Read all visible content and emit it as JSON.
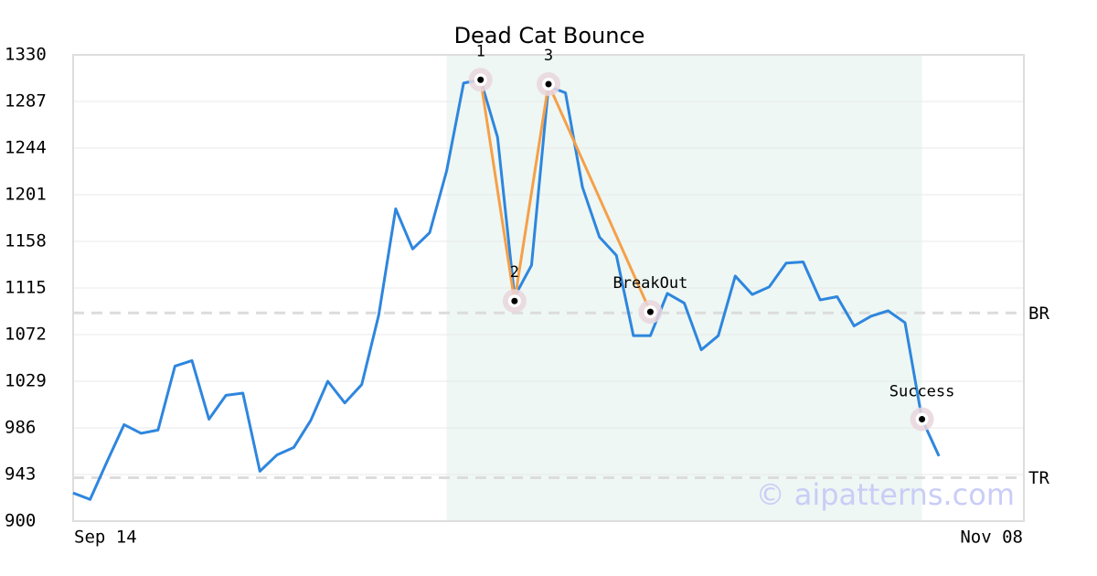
{
  "chart_data": {
    "type": "line",
    "title": "Dead Cat Bounce",
    "categories": [
      "Sep 14",
      null,
      null,
      null,
      null,
      null,
      null,
      null,
      null,
      null,
      null,
      null,
      null,
      null,
      null,
      null,
      null,
      null,
      null,
      null,
      null,
      null,
      null,
      null,
      null,
      null,
      null,
      null,
      null,
      null,
      null,
      null,
      null,
      null,
      null,
      null,
      null,
      null,
      null,
      null,
      null,
      null,
      null,
      null,
      null,
      null,
      null,
      null,
      null,
      null,
      null,
      null,
      null,
      null,
      null,
      null,
      "Nov 08"
    ],
    "series": [
      {
        "color": "#2e86de",
        "values": [
          926,
          920,
          955,
          989,
          981,
          984,
          1043,
          1048,
          994,
          1016,
          1018,
          946,
          961,
          968,
          993,
          1029,
          1009,
          1026,
          1090,
          1188,
          1151,
          1166,
          1223,
          1304,
          1307,
          1254,
          1107,
          1136,
          1301,
          1295,
          1208,
          1162,
          1145,
          1071,
          1071,
          1110,
          1101,
          1058,
          1071,
          1126,
          1109,
          1116,
          1138,
          1139,
          1104,
          1107,
          1080,
          1089,
          1094,
          1083,
          994,
          960,
          null,
          null,
          null,
          null,
          null
        ]
      }
    ],
    "ylim": [
      900,
      1330
    ],
    "yticks": [
      900,
      943,
      986,
      1029,
      1072,
      1115,
      1158,
      1201,
      1244,
      1287,
      1330
    ],
    "grid": true,
    "pattern_color": "#f5a04a",
    "pattern_points": [
      {
        "label": "1",
        "x": 24,
        "y": 1307
      },
      {
        "label": "2",
        "x": 26,
        "y": 1103
      },
      {
        "label": "3",
        "x": 28,
        "y": 1303
      },
      {
        "label": "BreakOut",
        "x": 34,
        "y": 1093
      }
    ],
    "annotations": [
      {
        "label": "Success",
        "x": 50,
        "y": 994
      }
    ],
    "levels": [
      {
        "label": "BR",
        "value": 1092
      },
      {
        "label": "TR",
        "value": 940
      }
    ],
    "shaded_range": [
      22,
      50
    ],
    "watermark": "© aipatterns.com"
  }
}
